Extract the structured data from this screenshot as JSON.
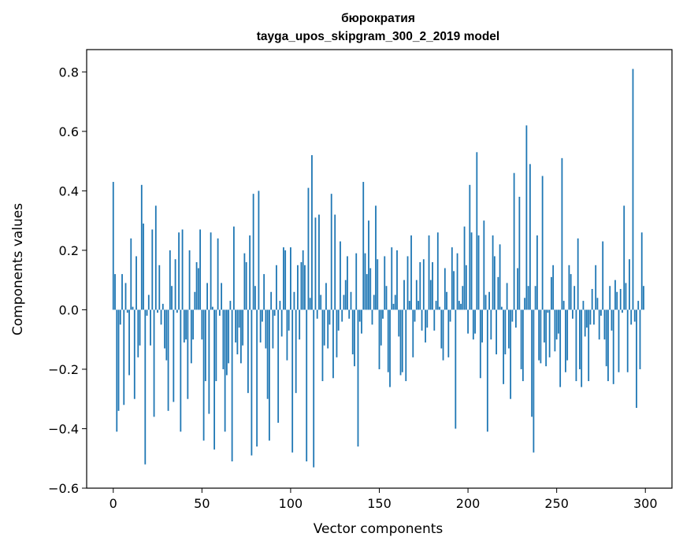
{
  "chart_data": {
    "type": "bar",
    "title_line1": "бюрократия",
    "title_line2": "tayga_upos_skipgram_300_2_2019 model",
    "xlabel": "Vector components",
    "ylabel": "Components values",
    "xlim": [
      -15,
      315
    ],
    "ylim": [
      -0.6,
      0.875
    ],
    "xticks": [
      0,
      50,
      100,
      150,
      200,
      250,
      300
    ],
    "xtick_labels": [
      "0",
      "50",
      "100",
      "150",
      "200",
      "250",
      "300"
    ],
    "yticks": [
      -0.6,
      -0.4,
      -0.2,
      0.0,
      0.2,
      0.4,
      0.6,
      0.8
    ],
    "ytick_labels": [
      "−0.6",
      "−0.4",
      "−0.2",
      "0.0",
      "0.2",
      "0.4",
      "0.6",
      "0.8"
    ],
    "bar_color": "#1f77b4",
    "grid": false,
    "x": [
      0,
      1,
      2,
      3,
      4,
      5,
      6,
      7,
      8,
      9,
      10,
      11,
      12,
      13,
      14,
      15,
      16,
      17,
      18,
      19,
      20,
      21,
      22,
      23,
      24,
      25,
      26,
      27,
      28,
      29,
      30,
      31,
      32,
      33,
      34,
      35,
      36,
      37,
      38,
      39,
      40,
      41,
      42,
      43,
      44,
      45,
      46,
      47,
      48,
      49,
      50,
      51,
      52,
      53,
      54,
      55,
      56,
      57,
      58,
      59,
      60,
      61,
      62,
      63,
      64,
      65,
      66,
      67,
      68,
      69,
      70,
      71,
      72,
      73,
      74,
      75,
      76,
      77,
      78,
      79,
      80,
      81,
      82,
      83,
      84,
      85,
      86,
      87,
      88,
      89,
      90,
      91,
      92,
      93,
      94,
      95,
      96,
      97,
      98,
      99,
      100,
      101,
      102,
      103,
      104,
      105,
      106,
      107,
      108,
      109,
      110,
      111,
      112,
      113,
      114,
      115,
      116,
      117,
      118,
      119,
      120,
      121,
      122,
      123,
      124,
      125,
      126,
      127,
      128,
      129,
      130,
      131,
      132,
      133,
      134,
      135,
      136,
      137,
      138,
      139,
      140,
      141,
      142,
      143,
      144,
      145,
      146,
      147,
      148,
      149,
      150,
      151,
      152,
      153,
      154,
      155,
      156,
      157,
      158,
      159,
      160,
      161,
      162,
      163,
      164,
      165,
      166,
      167,
      168,
      169,
      170,
      171,
      172,
      173,
      174,
      175,
      176,
      177,
      178,
      179,
      180,
      181,
      182,
      183,
      184,
      185,
      186,
      187,
      188,
      189,
      190,
      191,
      192,
      193,
      194,
      195,
      196,
      197,
      198,
      199,
      200,
      201,
      202,
      203,
      204,
      205,
      206,
      207,
      208,
      209,
      210,
      211,
      212,
      213,
      214,
      215,
      216,
      217,
      218,
      219,
      220,
      221,
      222,
      223,
      224,
      225,
      226,
      227,
      228,
      229,
      230,
      231,
      232,
      233,
      234,
      235,
      236,
      237,
      238,
      239,
      240,
      241,
      242,
      243,
      244,
      245,
      246,
      247,
      248,
      249,
      250,
      251,
      252,
      253,
      254,
      255,
      256,
      257,
      258,
      259,
      260,
      261,
      262,
      263,
      264,
      265,
      266,
      267,
      268,
      269,
      270,
      271,
      272,
      273,
      274,
      275,
      276,
      277,
      278,
      279,
      280,
      281,
      282,
      283,
      284,
      285,
      286,
      287,
      288,
      289,
      290,
      291,
      292,
      293,
      294,
      295,
      296,
      297,
      298,
      299
    ],
    "values": [
      0.43,
      0.12,
      -0.41,
      -0.34,
      -0.05,
      0.12,
      -0.32,
      0.09,
      -0.01,
      -0.22,
      0.24,
      0.01,
      -0.3,
      0.18,
      -0.16,
      -0.12,
      0.42,
      0.29,
      -0.52,
      -0.02,
      0.05,
      -0.12,
      0.27,
      -0.36,
      0.35,
      -0.01,
      0.15,
      -0.05,
      0.02,
      -0.13,
      -0.17,
      -0.34,
      0.2,
      0.08,
      -0.31,
      0.17,
      -0.01,
      0.26,
      -0.41,
      0.27,
      -0.11,
      -0.1,
      -0.3,
      0.2,
      -0.18,
      -0.1,
      0.06,
      0.16,
      0.14,
      0.27,
      -0.1,
      -0.44,
      -0.24,
      0.09,
      -0.35,
      0.26,
      0.01,
      -0.47,
      -0.24,
      0.24,
      -0.02,
      0.09,
      -0.2,
      -0.41,
      -0.22,
      -0.18,
      0.03,
      -0.51,
      0.28,
      -0.11,
      -0.15,
      -0.06,
      -0.18,
      -0.12,
      0.19,
      0.16,
      -0.28,
      0.25,
      -0.49,
      0.39,
      0.08,
      -0.46,
      0.4,
      -0.11,
      -0.04,
      0.12,
      -0.13,
      -0.3,
      -0.44,
      0.06,
      -0.13,
      -0.02,
      0.15,
      -0.38,
      0.03,
      -0.09,
      0.21,
      0.2,
      -0.17,
      -0.07,
      0.21,
      -0.48,
      0.06,
      -0.28,
      0.15,
      -0.1,
      0.16,
      0.2,
      0.15,
      -0.51,
      0.41,
      0.04,
      0.52,
      -0.53,
      0.31,
      -0.03,
      0.32,
      0.05,
      -0.24,
      -0.12,
      0.09,
      -0.13,
      -0.05,
      0.39,
      -0.23,
      0.32,
      -0.16,
      -0.07,
      0.23,
      -0.04,
      0.05,
      0.1,
      0.18,
      -0.03,
      0.06,
      -0.15,
      -0.19,
      0.19,
      -0.46,
      -0.04,
      -0.08,
      0.43,
      0.19,
      0.12,
      0.3,
      0.14,
      -0.05,
      0.05,
      0.35,
      0.17,
      -0.2,
      -0.12,
      -0.03,
      0.18,
      0.08,
      -0.21,
      -0.26,
      0.21,
      0.02,
      0.05,
      0.2,
      -0.09,
      -0.22,
      -0.21,
      0.1,
      -0.24,
      0.18,
      0.03,
      0.25,
      -0.16,
      -0.04,
      0.1,
      0.03,
      0.16,
      -0.07,
      0.17,
      -0.11,
      -0.06,
      0.25,
      0.1,
      0.16,
      -0.07,
      0.03,
      0.26,
      0.01,
      -0.13,
      -0.17,
      0.14,
      0.06,
      -0.16,
      -0.04,
      0.21,
      0.13,
      -0.4,
      0.19,
      0.03,
      0.02,
      0.08,
      0.28,
      0.15,
      -0.08,
      0.42,
      0.26,
      -0.1,
      -0.08,
      0.53,
      0.25,
      -0.23,
      -0.11,
      0.3,
      0.05,
      -0.41,
      0.06,
      -0.1,
      0.25,
      0.18,
      -0.15,
      0.11,
      0.22,
      0.01,
      -0.25,
      -0.15,
      0.09,
      -0.13,
      -0.3,
      -0.04,
      0.46,
      -0.06,
      0.14,
      0.38,
      -0.2,
      -0.24,
      0.04,
      0.62,
      0.08,
      0.49,
      -0.36,
      -0.48,
      0.08,
      0.25,
      -0.17,
      -0.18,
      0.45,
      -0.11,
      -0.19,
      -0.01,
      -0.16,
      0.11,
      0.15,
      -0.14,
      -0.1,
      -0.08,
      -0.26,
      0.51,
      0.03,
      -0.21,
      -0.17,
      0.15,
      0.12,
      -0.03,
      0.08,
      -0.24,
      0.24,
      -0.2,
      -0.26,
      0.03,
      -0.09,
      -0.06,
      -0.24,
      -0.05,
      0.07,
      -0.05,
      0.15,
      0.04,
      -0.1,
      -0.02,
      0.23,
      -0.1,
      -0.19,
      -0.24,
      0.08,
      -0.07,
      -0.25,
      0.1,
      0.06,
      -0.21,
      0.07,
      -0.01,
      0.35,
      0.09,
      -0.21,
      0.17,
      -0.05,
      0.81,
      -0.04,
      -0.33,
      0.03,
      -0.2,
      0.26,
      0.08
    ]
  }
}
